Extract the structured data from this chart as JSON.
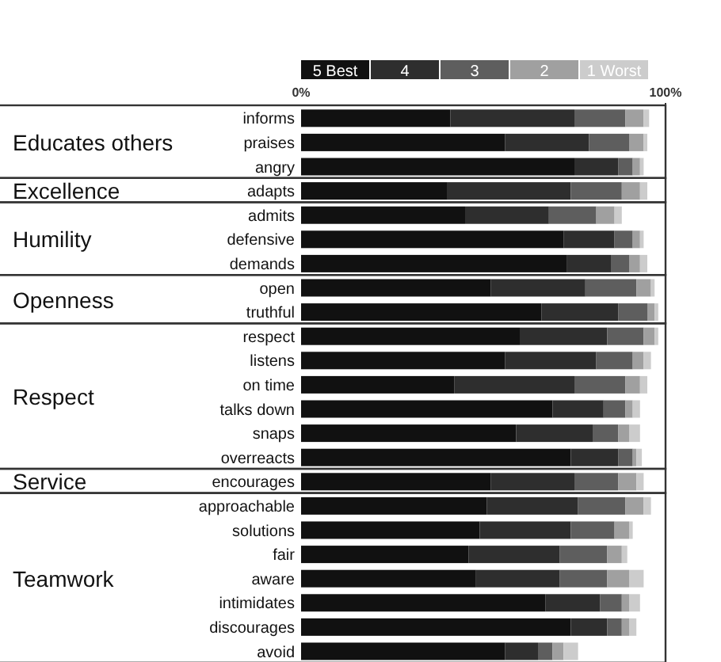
{
  "chart_data": {
    "type": "bar",
    "orientation": "horizontal",
    "stacked": true,
    "legend": "top",
    "categories": [
      "informs",
      "praises",
      "angry",
      "adapts",
      "admits",
      "defensive",
      "demands",
      "open",
      "truthful",
      "respect",
      "listens",
      "on time",
      "talks down",
      "snaps",
      "overreacts",
      "encourages",
      "approachable",
      "solutions",
      "fair",
      "aware",
      "intimidates",
      "discourages",
      "avoid"
    ],
    "series": [
      {
        "name": "5 Best",
        "color": "#111111",
        "values": [
          41,
          56,
          75,
          40,
          45,
          72,
          73,
          52,
          66,
          60,
          56,
          42,
          69,
          59,
          74,
          52,
          51,
          49,
          46,
          48,
          67,
          74,
          56
        ]
      },
      {
        "name": "4",
        "color": "#2e2e2e",
        "values": [
          34,
          23,
          12,
          34,
          23,
          14,
          12,
          26,
          21,
          24,
          25,
          33,
          14,
          21,
          13,
          23,
          25,
          25,
          25,
          23,
          15,
          10,
          9
        ]
      },
      {
        "name": "3",
        "color": "#5e5e5e",
        "values": [
          14,
          11,
          4,
          14,
          13,
          5,
          5,
          14,
          8,
          10,
          10,
          14,
          6,
          7,
          4,
          12,
          13,
          12,
          13,
          13,
          6,
          4,
          4
        ]
      },
      {
        "name": "2",
        "color": "#a0a0a0",
        "values": [
          5,
          4,
          2,
          5,
          5,
          2,
          3,
          4,
          2,
          3,
          3,
          4,
          2,
          3,
          1,
          5,
          5,
          4,
          4,
          6,
          2,
          2,
          3
        ]
      },
      {
        "name": "1 Worst",
        "color": "#cccccc",
        "values": [
          1.5,
          1,
          1,
          2,
          2,
          1,
          2,
          1,
          1,
          1,
          2,
          2,
          2,
          3,
          1.5,
          2,
          2,
          1,
          1.5,
          4,
          3,
          2,
          4
        ]
      }
    ],
    "xlim": [
      0,
      100
    ],
    "xticks": [
      {
        "value": 0,
        "label": "0%"
      },
      {
        "value": 100,
        "label": "100%"
      }
    ],
    "annotations": [
      "Educates others",
      "Excellence",
      "Humility",
      "Openness",
      "Respect",
      "Service",
      "Teamwork"
    ]
  }
}
